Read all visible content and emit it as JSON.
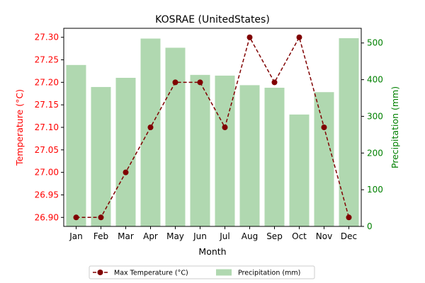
{
  "chart_data": {
    "type": "bar+line",
    "title": "KOSRAE (UnitedStates)",
    "xlabel": "Month",
    "ylabel_left": "Temperature (°C)",
    "ylabel_right": "Precipitation (mm)",
    "categories": [
      "Jan",
      "Feb",
      "Mar",
      "Apr",
      "May",
      "Jun",
      "Jul",
      "Aug",
      "Sep",
      "Oct",
      "Nov",
      "Dec"
    ],
    "left_axis": {
      "ylim": [
        26.88,
        27.32
      ],
      "ticks": [
        "26.90",
        "26.95",
        "27.00",
        "27.05",
        "27.10",
        "27.15",
        "27.20",
        "27.25",
        "27.30"
      ],
      "color": "#ff0000"
    },
    "right_axis": {
      "ylim": [
        0,
        540
      ],
      "ticks": [
        "0",
        "100",
        "200",
        "300",
        "400",
        "500"
      ],
      "color": "#008000"
    },
    "series": [
      {
        "name": "Max Temperature (°C)",
        "kind": "line",
        "axis": "left",
        "color": "#800000",
        "style": "dashed-with-circle-markers",
        "values": [
          26.9,
          26.9,
          27.0,
          27.1,
          27.2,
          27.2,
          27.1,
          27.3,
          27.2,
          27.3,
          27.1,
          26.9
        ]
      },
      {
        "name": "Precipitation (mm)",
        "kind": "bar",
        "axis": "right",
        "color": "#b0d8b0",
        "values": [
          440,
          380,
          405,
          512,
          487,
          413,
          411,
          385,
          378,
          305,
          366,
          513
        ]
      }
    ],
    "legend": "bottom-center",
    "grid": false
  }
}
